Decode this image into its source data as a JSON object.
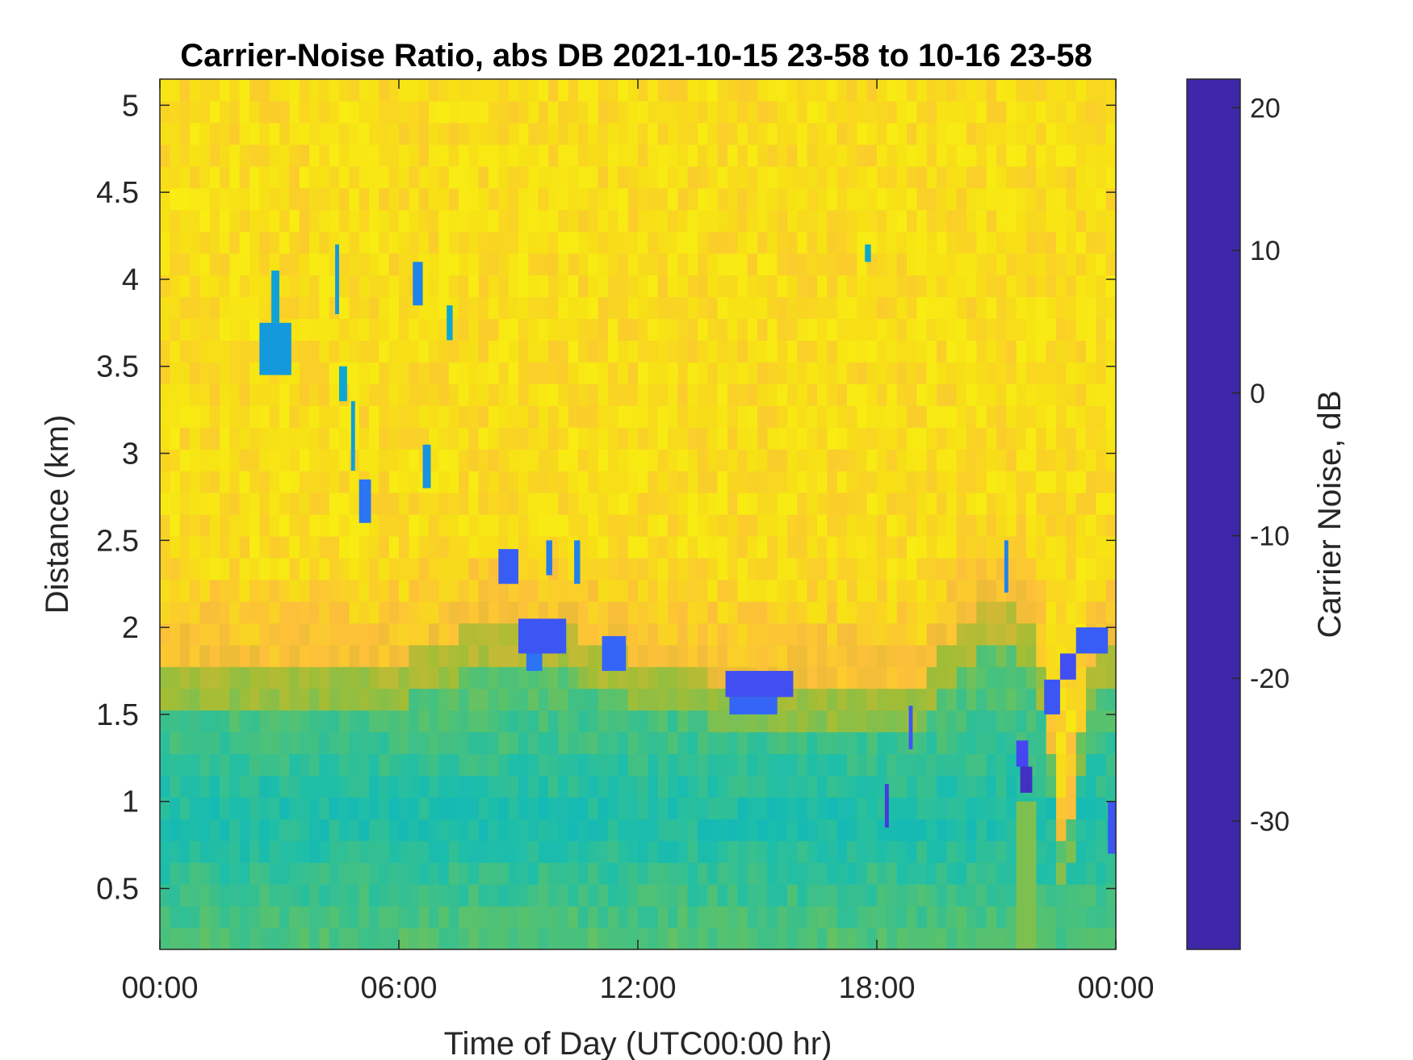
{
  "chart_data": {
    "type": "heatmap",
    "title": "Carrier-Noise Ratio, abs DB 2021-10-15 23-58 to 10-16 23-58",
    "xlabel": "Time of Day (UTC00:00 hr)",
    "ylabel": "Distance (km)",
    "x_ticks": [
      {
        "hour": 0,
        "label": "00:00"
      },
      {
        "hour": 6,
        "label": "06:00"
      },
      {
        "hour": 12,
        "label": "12:00"
      },
      {
        "hour": 18,
        "label": "18:00"
      },
      {
        "hour": 24,
        "label": "00:00"
      }
    ],
    "y_ticks": [
      {
        "km": 0.5,
        "label": "0.5"
      },
      {
        "km": 1,
        "label": "1"
      },
      {
        "km": 1.5,
        "label": "1.5"
      },
      {
        "km": 2,
        "label": "2"
      },
      {
        "km": 2.5,
        "label": "2.5"
      },
      {
        "km": 3,
        "label": "3"
      },
      {
        "km": 3.5,
        "label": "3.5"
      },
      {
        "km": 4,
        "label": "4"
      },
      {
        "km": 4.5,
        "label": "4.5"
      },
      {
        "km": 5,
        "label": "5"
      }
    ],
    "xlim": [
      0,
      24
    ],
    "ylim": [
      0.15,
      5.15
    ],
    "colorbar": {
      "label": "Carrier Noise, dB",
      "range": [
        -39,
        22
      ],
      "ticks": [
        {
          "value": 20,
          "label": "20"
        },
        {
          "value": 10,
          "label": "10"
        },
        {
          "value": 0,
          "label": "0"
        },
        {
          "value": -10,
          "label": "-10"
        },
        {
          "value": -20,
          "label": "-20"
        },
        {
          "value": -30,
          "label": "-30"
        }
      ],
      "colormap": [
        "#3e26a8",
        "#4743f0",
        "#2f6df8",
        "#1597de",
        "#05b2c9",
        "#1fbea8",
        "#5bc26a",
        "#a3bd35",
        "#dcb735",
        "#fdc03a",
        "#f7e016",
        "#f9fb0e"
      ]
    },
    "background_level_db": -33,
    "transition_km": [
      {
        "hour": 0,
        "km": 1.8
      },
      {
        "hour": 2,
        "km": 1.8
      },
      {
        "hour": 4,
        "km": 1.8
      },
      {
        "hour": 6,
        "km": 1.8
      },
      {
        "hour": 8,
        "km": 2.0
      },
      {
        "hour": 9,
        "km": 2.0
      },
      {
        "hour": 10,
        "km": 2.0
      },
      {
        "hour": 11,
        "km": 1.9
      },
      {
        "hour": 12,
        "km": 1.8
      },
      {
        "hour": 14,
        "km": 1.7
      },
      {
        "hour": 16,
        "km": 1.7
      },
      {
        "hour": 18,
        "km": 1.7
      },
      {
        "hour": 19,
        "km": 1.6
      },
      {
        "hour": 20,
        "km": 2.0
      },
      {
        "hour": 21,
        "km": 2.2
      },
      {
        "hour": 22,
        "km": 2.0
      },
      {
        "hour": 22.7,
        "km": 0.6
      },
      {
        "hour": 23.3,
        "km": 1.7
      },
      {
        "hour": 24,
        "km": 2.0
      }
    ],
    "features": [
      {
        "t0": 2.5,
        "t1": 3.3,
        "z0": 3.45,
        "z1": 3.75,
        "db": 5
      },
      {
        "t0": 2.8,
        "t1": 3.0,
        "z0": 3.75,
        "z1": 4.05,
        "db": 3
      },
      {
        "t0": 4.4,
        "t1": 4.5,
        "z0": 3.8,
        "z1": 4.2,
        "db": 5
      },
      {
        "t0": 4.5,
        "t1": 4.7,
        "z0": 3.3,
        "z1": 3.5,
        "db": 2
      },
      {
        "t0": 5.0,
        "t1": 5.3,
        "z0": 2.6,
        "z1": 2.85,
        "db": 10
      },
      {
        "t0": 4.8,
        "t1": 4.9,
        "z0": 2.9,
        "z1": 3.3,
        "db": 4
      },
      {
        "t0": 6.35,
        "t1": 6.6,
        "z0": 3.85,
        "z1": 4.1,
        "db": 8
      },
      {
        "t0": 6.6,
        "t1": 6.8,
        "z0": 2.8,
        "z1": 3.05,
        "db": 6
      },
      {
        "t0": 7.2,
        "t1": 7.35,
        "z0": 3.65,
        "z1": 3.85,
        "db": 2
      },
      {
        "t0": 8.5,
        "t1": 9.0,
        "z0": 2.25,
        "z1": 2.45,
        "db": 13
      },
      {
        "t0": 9.0,
        "t1": 10.2,
        "z0": 1.85,
        "z1": 2.05,
        "db": 14
      },
      {
        "t0": 9.2,
        "t1": 9.6,
        "z0": 1.75,
        "z1": 1.85,
        "db": 10
      },
      {
        "t0": 9.7,
        "t1": 9.85,
        "z0": 2.3,
        "z1": 2.5,
        "db": 9
      },
      {
        "t0": 10.4,
        "t1": 10.55,
        "z0": 2.25,
        "z1": 2.5,
        "db": 8
      },
      {
        "t0": 11.1,
        "t1": 11.7,
        "z0": 1.75,
        "z1": 1.95,
        "db": 12
      },
      {
        "t0": 14.2,
        "t1": 15.9,
        "z0": 1.6,
        "z1": 1.75,
        "db": 15
      },
      {
        "t0": 14.3,
        "t1": 15.5,
        "z0": 1.5,
        "z1": 1.6,
        "db": 12
      },
      {
        "t0": 17.7,
        "t1": 17.85,
        "z0": 4.1,
        "z1": 4.2,
        "db": 2
      },
      {
        "t0": 18.2,
        "t1": 18.3,
        "z0": 0.85,
        "z1": 1.1,
        "db": 18
      },
      {
        "t0": 18.8,
        "t1": 18.9,
        "z0": 1.3,
        "z1": 1.55,
        "db": 14
      },
      {
        "t0": 21.2,
        "t1": 21.3,
        "z0": 2.2,
        "z1": 2.5,
        "db": 8
      },
      {
        "t0": 21.5,
        "t1": 21.8,
        "z0": 1.2,
        "z1": 1.35,
        "db": 16
      },
      {
        "t0": 21.6,
        "t1": 21.9,
        "z0": 1.05,
        "z1": 1.2,
        "db": 20
      },
      {
        "t0": 22.2,
        "t1": 22.6,
        "z0": 1.5,
        "z1": 1.7,
        "db": 14
      },
      {
        "t0": 22.6,
        "t1": 23.0,
        "z0": 1.7,
        "z1": 1.85,
        "db": 15
      },
      {
        "t0": 23.0,
        "t1": 23.8,
        "z0": 1.85,
        "z1": 2.0,
        "db": 13
      },
      {
        "t0": 23.8,
        "t1": 24.0,
        "z0": 0.7,
        "z1": 1.0,
        "db": 14
      },
      {
        "t0": 21.5,
        "t1": 22.0,
        "z0": 0.15,
        "z1": 1.0,
        "db": -14
      }
    ]
  }
}
